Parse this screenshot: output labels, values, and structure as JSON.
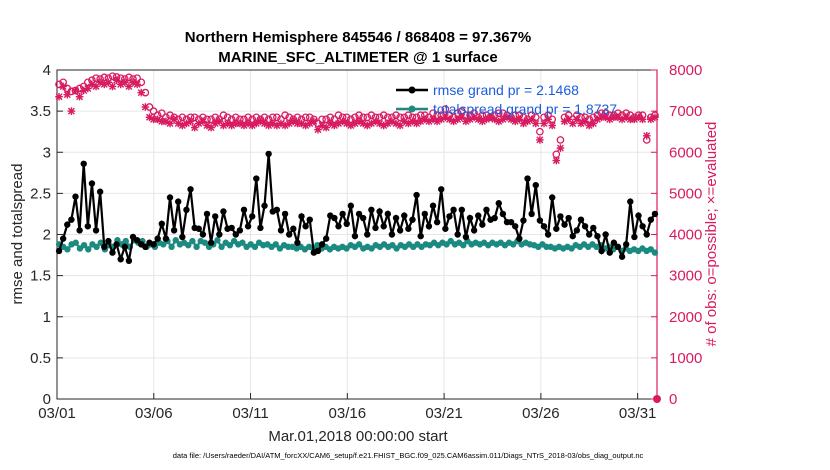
{
  "chart_data": {
    "type": "line",
    "title": "Northern Hemisphere 845546 / 868408 = 97.367%",
    "subtitle": "MARINE_SFC_ALTIMETER @ 1 surface",
    "xlabel": "Mar.01,2018 00:00:00 start",
    "ylabel": "rmse and totalspread",
    "y2label": "# of obs: o=possible; ×=evaluated",
    "footer": "data file: /Users/raeder/DAI/ATM_forcXX/CAM6_setup/f.e21.FHIST_BGC.f09_025.CAM6assim.011/Diags_NTrS_2018-03/obs_diag_output.nc",
    "x_tick_labels": [
      "03/01",
      "03/06",
      "03/11",
      "03/16",
      "03/21",
      "03/26",
      "03/31"
    ],
    "x_tick_days": [
      1,
      6,
      11,
      16,
      21,
      26,
      31
    ],
    "xlim": [
      1,
      32
    ],
    "ylim": [
      0,
      4
    ],
    "y_ticks": [
      0,
      0.5,
      1,
      1.5,
      2,
      2.5,
      3,
      3.5,
      4
    ],
    "y_tick_labels": [
      "0",
      "0.5",
      "1",
      "1.5",
      "2",
      "2.5",
      "3",
      "3.5",
      "4"
    ],
    "y2lim": [
      0,
      8000
    ],
    "y2_ticks": [
      0,
      1000,
      2000,
      3000,
      4000,
      5000,
      6000,
      7000,
      8000
    ],
    "y2_tick_labels": [
      "0",
      "1000",
      "2000",
      "3000",
      "4000",
      "5000",
      "6000",
      "7000",
      "8000"
    ],
    "grid": true,
    "legend_position": "top-right",
    "colors": {
      "rmse": "#000000",
      "spread": "#1b8a80",
      "obs": "#d81b60"
    },
    "series": [
      {
        "name": "rmse grand pr = 2.1468",
        "axis": "left",
        "color": "#000000",
        "values": [
          1.8,
          1.95,
          2.12,
          2.18,
          2.46,
          2.05,
          2.86,
          2.1,
          2.62,
          2.05,
          2.52,
          1.85,
          1.92,
          1.78,
          1.88,
          1.7,
          1.85,
          1.68,
          1.97,
          1.93,
          1.88,
          1.85,
          1.9,
          1.88,
          1.95,
          2.13,
          1.95,
          2.45,
          2.05,
          2.4,
          1.97,
          2.3,
          2.55,
          2.08,
          2.07,
          2.0,
          2.25,
          1.9,
          2.22,
          2.0,
          2.28,
          2.07,
          2.08,
          2.0,
          2.05,
          2.3,
          2.1,
          2.22,
          2.68,
          2.08,
          2.35,
          2.98,
          2.28,
          2.3,
          2.05,
          2.25,
          2.0,
          2.07,
          1.9,
          2.22,
          2.1,
          2.18,
          1.78,
          1.8,
          1.88,
          1.95,
          2.23,
          2.2,
          2.1,
          2.25,
          2.13,
          2.35,
          1.98,
          2.25,
          2.2,
          2.0,
          2.3,
          2.08,
          2.28,
          2.1,
          2.25,
          2.0,
          2.2,
          2.05,
          2.23,
          2.07,
          2.18,
          2.48,
          1.98,
          2.25,
          2.1,
          2.35,
          2.15,
          2.55,
          2.07,
          2.22,
          2.3,
          2.0,
          2.3,
          1.97,
          2.2,
          2.05,
          2.23,
          2.12,
          2.3,
          2.18,
          2.2,
          2.38,
          2.25,
          2.15,
          2.15,
          2.1,
          1.95,
          2.17,
          2.68,
          2.25,
          2.6,
          2.17,
          2.1,
          2.0,
          2.45,
          2.07,
          2.22,
          2.12,
          2.2,
          1.98,
          2.05,
          2.18,
          2.1,
          2.0,
          2.08,
          1.98,
          1.8,
          2.0,
          1.78,
          1.9,
          1.85,
          1.73,
          1.88,
          2.4,
          1.97,
          2.23,
          2.1,
          2.0,
          2.18,
          2.25
        ]
      },
      {
        "name": "totalspread grand pr = 1.8737",
        "axis": "left",
        "color": "#1b8a80",
        "values": [
          1.88,
          1.85,
          1.82,
          1.88,
          1.9,
          1.83,
          1.87,
          1.82,
          1.88,
          1.85,
          1.9,
          1.82,
          1.87,
          1.85,
          1.93,
          1.88,
          1.92,
          1.85,
          1.93,
          1.9,
          1.92,
          1.85,
          1.88,
          1.85,
          1.9,
          1.88,
          1.92,
          1.85,
          1.93,
          1.88,
          1.9,
          1.87,
          1.92,
          1.85,
          1.92,
          1.9,
          1.85,
          1.88,
          1.93,
          1.85,
          1.9,
          1.87,
          1.92,
          1.88,
          1.9,
          1.85,
          1.88,
          1.85,
          1.9,
          1.87,
          1.88,
          1.85,
          1.88,
          1.83,
          1.87,
          1.85,
          1.85,
          1.83,
          1.85,
          1.82,
          1.85,
          1.83,
          1.87,
          1.83,
          1.85,
          1.82,
          1.85,
          1.83,
          1.85,
          1.83,
          1.87,
          1.85,
          1.88,
          1.83,
          1.85,
          1.83,
          1.87,
          1.85,
          1.88,
          1.85,
          1.87,
          1.83,
          1.87,
          1.85,
          1.88,
          1.85,
          1.88,
          1.85,
          1.88,
          1.87,
          1.9,
          1.87,
          1.9,
          1.88,
          1.92,
          1.88,
          1.9,
          1.87,
          1.92,
          1.88,
          1.9,
          1.88,
          1.9,
          1.87,
          1.9,
          1.88,
          1.9,
          1.87,
          1.9,
          1.88,
          1.92,
          1.88,
          1.9,
          1.88,
          1.87,
          1.85,
          1.88,
          1.85,
          1.85,
          1.83,
          1.85,
          1.83,
          1.85,
          1.83,
          1.87,
          1.85,
          1.88,
          1.85,
          1.88,
          1.85,
          1.87,
          1.83,
          1.85,
          1.82,
          1.85,
          1.8,
          1.83,
          1.8,
          1.82,
          1.8,
          1.83,
          1.8,
          1.82,
          1.78
        ]
      },
      {
        "name": "obs possible",
        "axis": "right",
        "marker": "o",
        "color": "#d81b60",
        "values": [
          7650,
          7700,
          7550,
          7480,
          7500,
          7550,
          7600,
          7700,
          7750,
          7800,
          7780,
          7820,
          7800,
          7850,
          7830,
          7800,
          7780,
          7820,
          7780,
          7800,
          7700,
          7450,
          7100,
          7000,
          6900,
          6950,
          6850,
          6900,
          6850,
          6800,
          6850,
          6800,
          6850,
          6850,
          6800,
          6850,
          6800,
          6800,
          6850,
          6800,
          6900,
          6850,
          6800,
          6850,
          6800,
          6800,
          6850,
          6800,
          6850,
          6800,
          6850,
          6800,
          6850,
          6850,
          6800,
          6900,
          6850,
          6800,
          6850,
          6800,
          6850,
          6850,
          6800,
          6700,
          6800,
          6800,
          6850,
          6800,
          6900,
          6850,
          6850,
          6800,
          6850,
          6900,
          6850,
          6850,
          6900,
          6850,
          6850,
          6900,
          6850,
          6850,
          6900,
          6850,
          6850,
          6900,
          6850,
          6850,
          6900,
          6900,
          6850,
          6950,
          6900,
          6900,
          7050,
          6900,
          6850,
          6950,
          7000,
          6900,
          6900,
          6950,
          6850,
          6900,
          6900,
          6850,
          6900,
          6950,
          6950,
          6900,
          6850,
          6900,
          6900,
          6850,
          6800,
          6900,
          6850,
          6500,
          6850,
          6900,
          6800,
          5950,
          6300,
          6850,
          6900,
          6800,
          6900,
          6850,
          6850,
          6800,
          6850,
          6900,
          6950,
          6950,
          6900,
          6900,
          6950,
          6900,
          6950,
          6900,
          6850,
          6900,
          6900,
          6300,
          6850,
          6900
        ]
      },
      {
        "name": "obs evaluated",
        "axis": "right",
        "marker": "x",
        "color": "#d81b60",
        "values": [
          7350,
          7600,
          7400,
          7000,
          7500,
          7350,
          7500,
          7550,
          7650,
          7600,
          7700,
          7650,
          7700,
          7600,
          7750,
          7650,
          7700,
          7600,
          7700,
          7650,
          7450,
          7100,
          6850,
          6800,
          6800,
          6750,
          6750,
          6700,
          6800,
          6700,
          6650,
          6700,
          6750,
          6600,
          6700,
          6750,
          6650,
          6600,
          6700,
          6750,
          6650,
          6700,
          6650,
          6700,
          6700,
          6650,
          6700,
          6650,
          6700,
          6750,
          6700,
          6650,
          6700,
          6650,
          6700,
          6650,
          6700,
          6750,
          6700,
          6700,
          6650,
          6700,
          6750,
          6550,
          6650,
          6600,
          6700,
          6650,
          6700,
          6750,
          6700,
          6650,
          6700,
          6750,
          6700,
          6650,
          6700,
          6750,
          6700,
          6650,
          6700,
          6750,
          6700,
          6650,
          6750,
          6700,
          6750,
          6700,
          6750,
          6800,
          6750,
          6800,
          6750,
          6800,
          6850,
          6800,
          6750,
          6800,
          6850,
          6750,
          6800,
          6850,
          6800,
          6750,
          6800,
          6850,
          6800,
          6750,
          6800,
          6850,
          6800,
          6750,
          6800,
          6700,
          6750,
          6800,
          6700,
          6300,
          6700,
          6800,
          6650,
          5800,
          6100,
          6750,
          6800,
          6700,
          6800,
          6700,
          6750,
          6650,
          6700,
          6800,
          6850,
          6850,
          6800,
          6850,
          6850,
          6800,
          6850,
          6800,
          6800,
          6850,
          6800,
          6400,
          6800,
          6850
        ]
      }
    ]
  }
}
